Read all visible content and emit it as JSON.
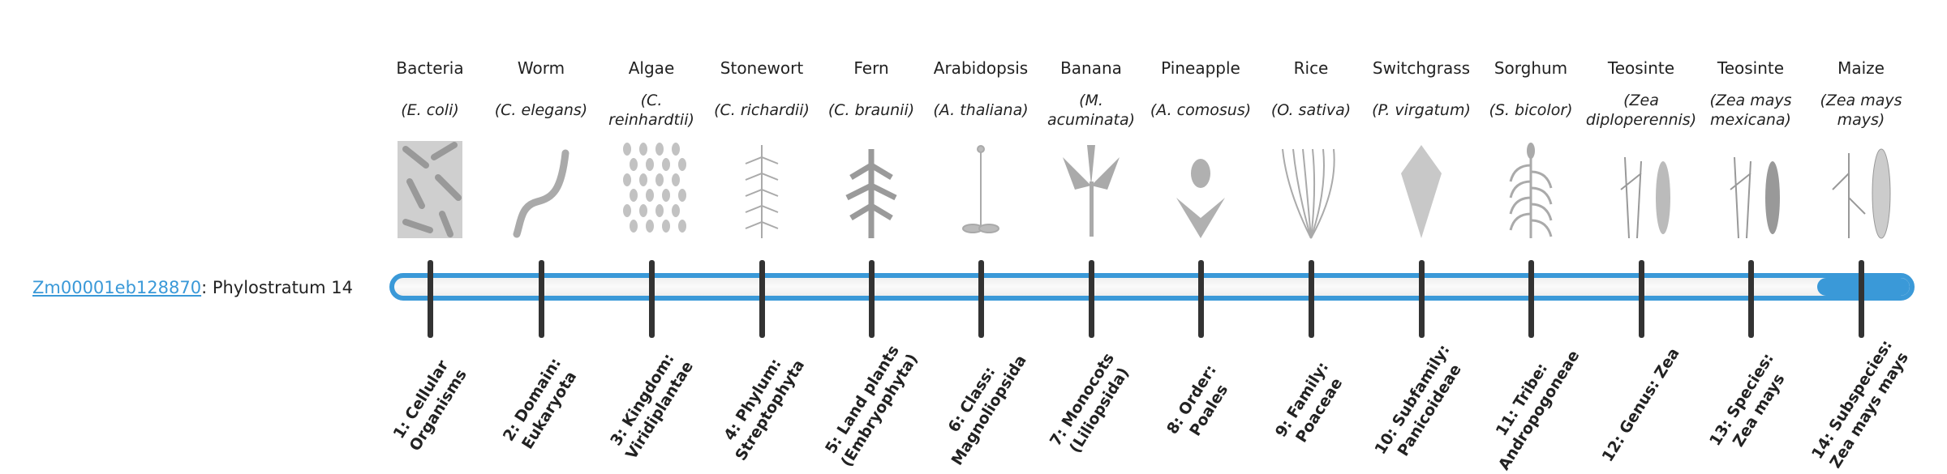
{
  "gene": {
    "id": "Zm00001eb128870",
    "suffix": ": Phylostratum 14"
  },
  "progress": {
    "value": 14,
    "max": 14,
    "color": "#3a99d8"
  },
  "strata": [
    {
      "common": "Bacteria",
      "sci": "(E. coli)",
      "level": "1: Cellular Organisms",
      "icon": "bacteria-icon"
    },
    {
      "common": "Worm",
      "sci": "(C. elegans)",
      "level": "2: Domain: Eukaryota",
      "icon": "worm-icon"
    },
    {
      "common": "Algae",
      "sci": "(C. reinhardtii)",
      "level": "3: Kingdom: Viridiplantae",
      "icon": "algae-icon"
    },
    {
      "common": "Stonewort",
      "sci": "(C. richardii)",
      "level": "4: Phylum: Streptophyta",
      "icon": "stonewort-icon"
    },
    {
      "common": "Fern",
      "sci": "(C. braunii)",
      "level": "5: Land plants (Embryophyta)",
      "icon": "fern-icon"
    },
    {
      "common": "Arabidopsis",
      "sci": "(A. thaliana)",
      "level": "6: Class: Magnoliopsida",
      "icon": "arabidopsis-icon"
    },
    {
      "common": "Banana",
      "sci": "(M. acuminata)",
      "level": "7: Monocots (Liliopsida)",
      "icon": "banana-icon"
    },
    {
      "common": "Pineapple",
      "sci": "(A. comosus)",
      "level": "8: Order: Poales",
      "icon": "pineapple-icon"
    },
    {
      "common": "Rice",
      "sci": "(O. sativa)",
      "level": "9: Family: Poaceae",
      "icon": "rice-icon"
    },
    {
      "common": "Switchgrass",
      "sci": "(P. virgatum)",
      "level": "10: Subfamily: Panicoideae",
      "icon": "switchgrass-icon"
    },
    {
      "common": "Sorghum",
      "sci": "(S. bicolor)",
      "level": "11: Tribe: Andropogoneae",
      "icon": "sorghum-icon"
    },
    {
      "common": "Teosinte",
      "sci": "(Zea diploperennis)",
      "level": "12: Genus: Zea",
      "icon": "teosinte-icon"
    },
    {
      "common": "Teosinte",
      "sci": "(Zea mays mexicana)",
      "level": "13: Species: Zea mays",
      "icon": "teosinte-icon"
    },
    {
      "common": "Maize",
      "sci": "(Zea mays mays)",
      "level": "14: Subspecies: Zea mays mays",
      "icon": "maize-icon"
    }
  ]
}
